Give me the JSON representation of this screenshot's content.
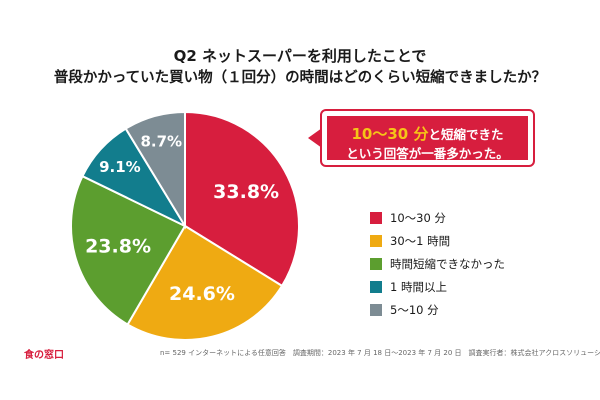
{
  "title": {
    "line1": "Q2 ネットスーパーを利用したことで",
    "line2": "普段かかっていた買い物（１回分）の時間はどのくらい短縮できましたか？"
  },
  "callout": {
    "highlight": "10〜30 分",
    "line1_rest": "と短縮できた",
    "line2": "という回答が一番多かった。"
  },
  "chart_data": {
    "type": "pie",
    "title": "",
    "slices": [
      {
        "label": "10〜30 分",
        "value": 33.8,
        "value_label": "33.8%",
        "color": "#d71e3e"
      },
      {
        "label": "30〜1 時間",
        "value": 24.6,
        "value_label": "24.6%",
        "color": "#efaa12"
      },
      {
        "label": "時間短縮できなかった",
        "value": 23.8,
        "value_label": "23.8%",
        "color": "#5c9e2f"
      },
      {
        "label": "1 時間以上",
        "value": 9.1,
        "value_label": "9.1%",
        "color": "#127d8d"
      },
      {
        "label": "5〜10 分",
        "value": 8.7,
        "value_label": "8.7%",
        "color": "#7d8c94"
      }
    ],
    "legend_position": "right"
  },
  "footer": {
    "logo": "食の窓口",
    "note": "n= 529 インターネットによる任意回答　調査期間：2023 年 7 月 18 日〜2023 年 7 月 20 日　調査実行者：株式会社アクロスソリューションズ"
  }
}
